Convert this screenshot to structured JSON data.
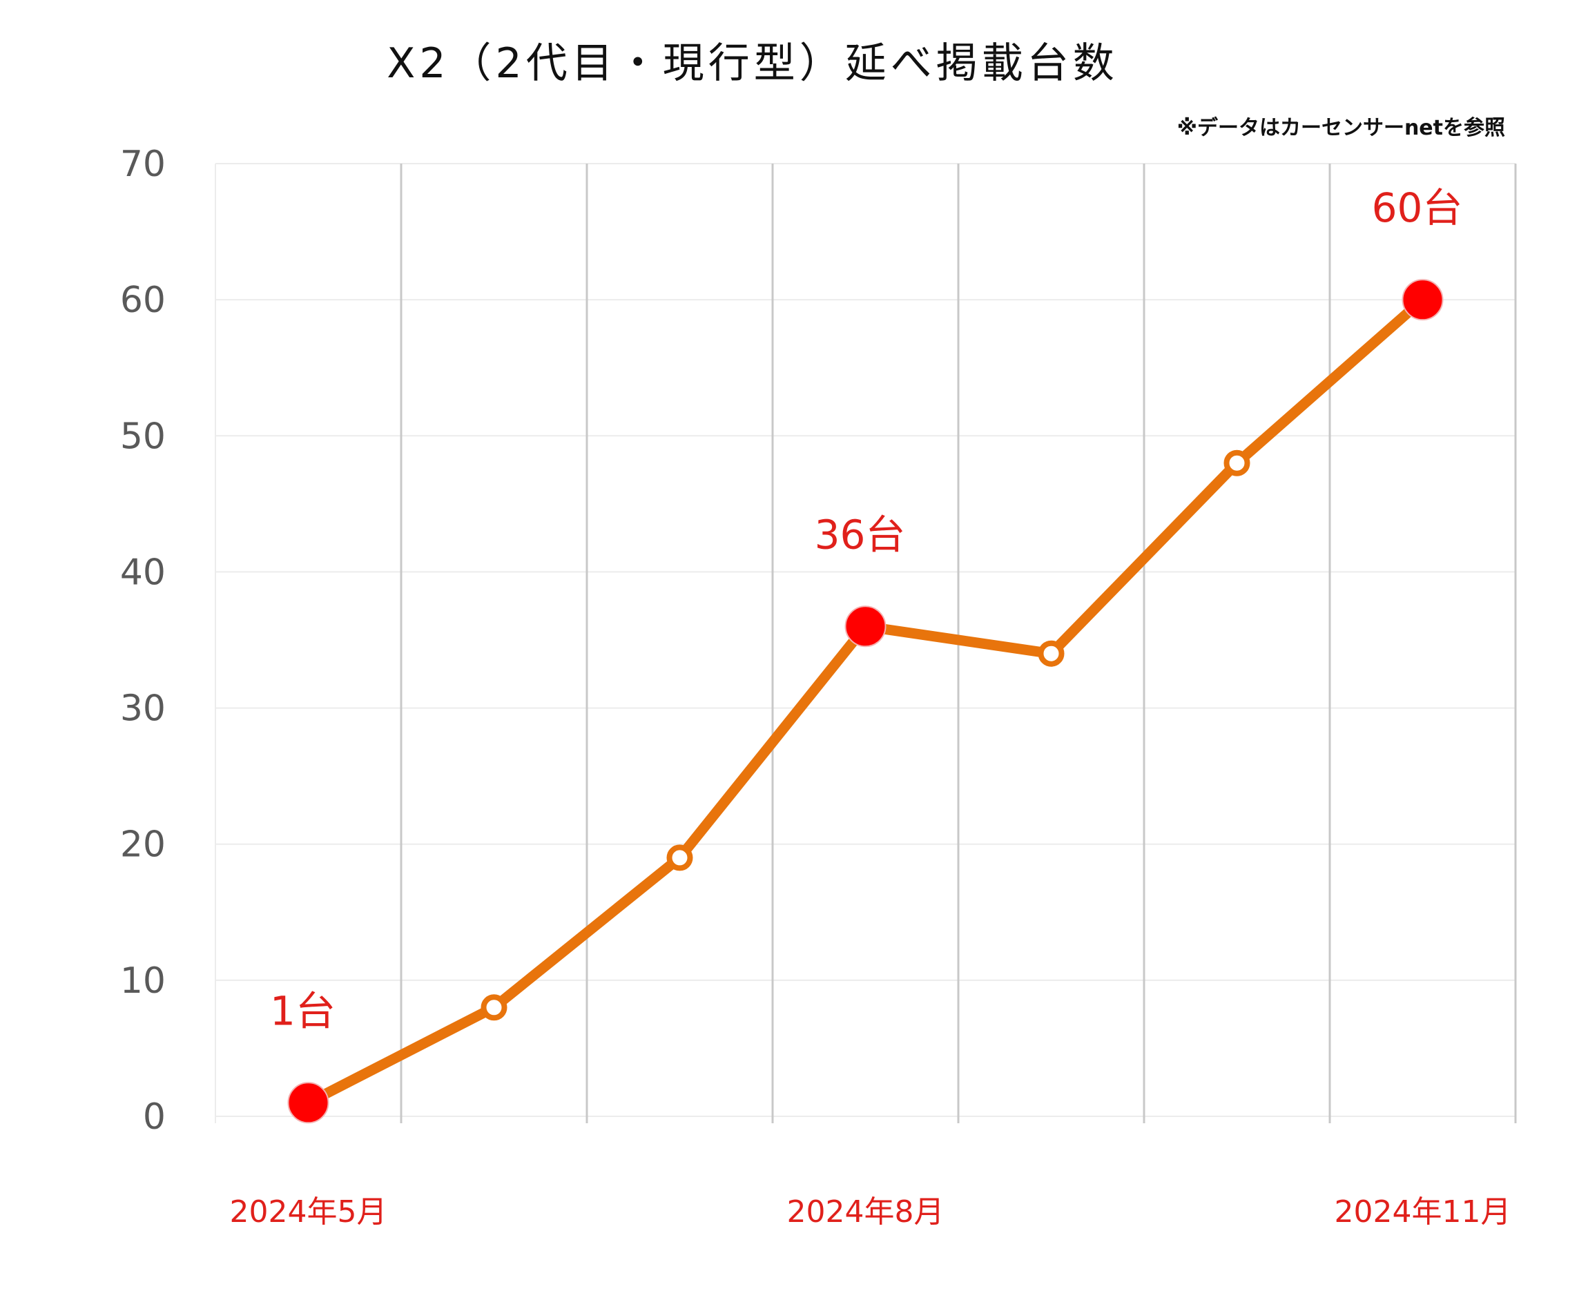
{
  "chart_data": {
    "type": "line",
    "title": "X2（2代目・現行型）延べ掲載台数",
    "note": "※データはカーセンサーnetを参照",
    "categories": [
      "2024年5月",
      "",
      "",
      "2024年8月",
      "",
      "",
      "2024年11月"
    ],
    "series": [
      {
        "values": [
          1,
          8,
          19,
          36,
          34,
          48,
          60
        ]
      }
    ],
    "highlighted_points": [
      {
        "index": 0,
        "label": "1台"
      },
      {
        "index": 3,
        "label": "36台"
      },
      {
        "index": 6,
        "label": "60台"
      }
    ],
    "yticks": [
      "0",
      "10",
      "20",
      "30",
      "40",
      "50",
      "60",
      "70"
    ],
    "ylim": [
      0,
      70
    ],
    "grid": "vertical and horizontal",
    "colors": {
      "line": "#e8740c",
      "highlight": "#ff0000",
      "label": "#e0201b"
    }
  }
}
